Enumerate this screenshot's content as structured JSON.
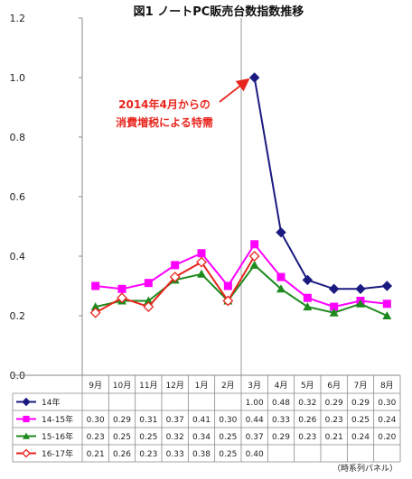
{
  "chart_data": {
    "type": "line",
    "title": "図1 ノートPC販売台数指数推移",
    "categories": [
      "9月",
      "10月",
      "11月",
      "12月",
      "1月",
      "2月",
      "3月",
      "4月",
      "5月",
      "6月",
      "7月",
      "8月"
    ],
    "ylim": [
      0,
      1.2
    ],
    "yticks": [
      "0.0",
      "0.2",
      "0.4",
      "0.6",
      "0.8",
      "1.0",
      "1.2"
    ],
    "series": [
      {
        "name": "14年",
        "color": "#1a1a80",
        "marker": "diamond-filled",
        "values": [
          null,
          null,
          null,
          null,
          null,
          null,
          1.0,
          0.48,
          0.32,
          0.29,
          0.29,
          0.3
        ],
        "labels": [
          "",
          "",
          "",
          "",
          "",
          "",
          "1.00",
          "0.48",
          "0.32",
          "0.29",
          "0.29",
          "0.30"
        ]
      },
      {
        "name": "14-15年",
        "color": "#ff00ff",
        "marker": "square",
        "values": [
          0.3,
          0.29,
          0.31,
          0.37,
          0.41,
          0.3,
          0.44,
          0.33,
          0.26,
          0.23,
          0.25,
          0.24
        ],
        "labels": [
          "0.30",
          "0.29",
          "0.31",
          "0.37",
          "0.41",
          "0.30",
          "0.44",
          "0.33",
          "0.26",
          "0.23",
          "0.25",
          "0.24"
        ]
      },
      {
        "name": "15-16年",
        "color": "#1e8a1e",
        "marker": "triangle",
        "values": [
          0.23,
          0.25,
          0.25,
          0.32,
          0.34,
          0.25,
          0.37,
          0.29,
          0.23,
          0.21,
          0.24,
          0.2
        ],
        "labels": [
          "0.23",
          "0.25",
          "0.25",
          "0.32",
          "0.34",
          "0.25",
          "0.37",
          "0.29",
          "0.23",
          "0.21",
          "0.24",
          "0.20"
        ]
      },
      {
        "name": "16-17年",
        "color": "#e8251d",
        "marker": "diamond-open",
        "values": [
          0.21,
          0.26,
          0.23,
          0.33,
          0.38,
          0.25,
          0.4,
          null,
          null,
          null,
          null,
          null
        ],
        "labels": [
          "0.21",
          "0.26",
          "0.23",
          "0.33",
          "0.38",
          "0.25",
          "0.40",
          "",
          "",
          "",
          "",
          ""
        ]
      }
    ],
    "annotation": {
      "lines": [
        "2014年4月からの",
        "消費増税による特需"
      ],
      "points_to": {
        "category": "3月",
        "value": 1.0
      }
    },
    "vertical_reference_line": "3月",
    "grid": false,
    "legend": "data-table-below",
    "source": "（時系列パネル）"
  }
}
